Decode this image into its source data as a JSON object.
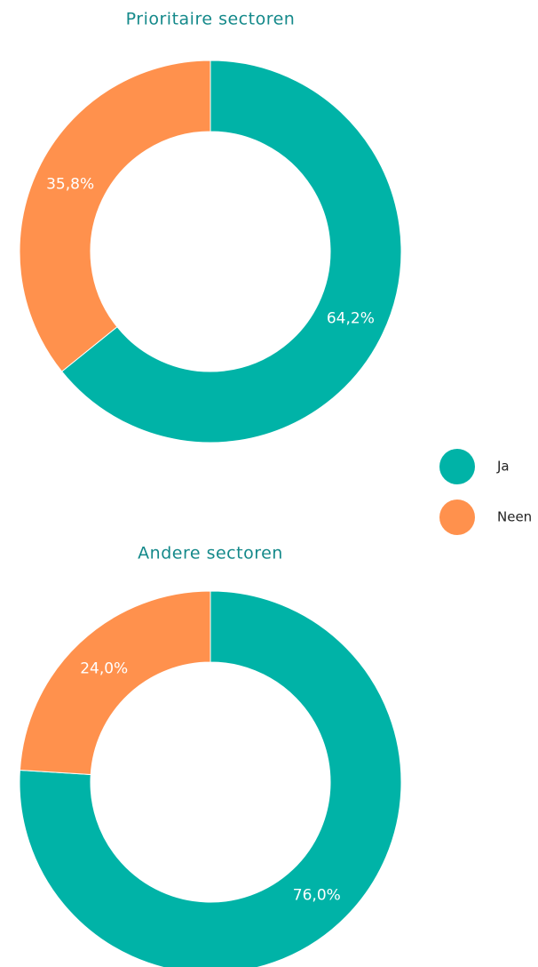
{
  "chart_data": [
    {
      "type": "donut",
      "title": "Prioritaire sectoren",
      "categories": [
        "Ja",
        "Neen"
      ],
      "values": [
        64.2,
        35.8
      ],
      "value_labels": [
        "64,2%",
        "35,8%"
      ],
      "colors": [
        "#00b3a7",
        "#ff914d"
      ]
    },
    {
      "type": "donut",
      "title": "Andere sectoren",
      "categories": [
        "Ja",
        "Neen"
      ],
      "values": [
        76.0,
        24.0
      ],
      "value_labels": [
        "76,0%",
        "24,0%"
      ],
      "colors": [
        "#00b3a7",
        "#ff914d"
      ]
    }
  ]
}
